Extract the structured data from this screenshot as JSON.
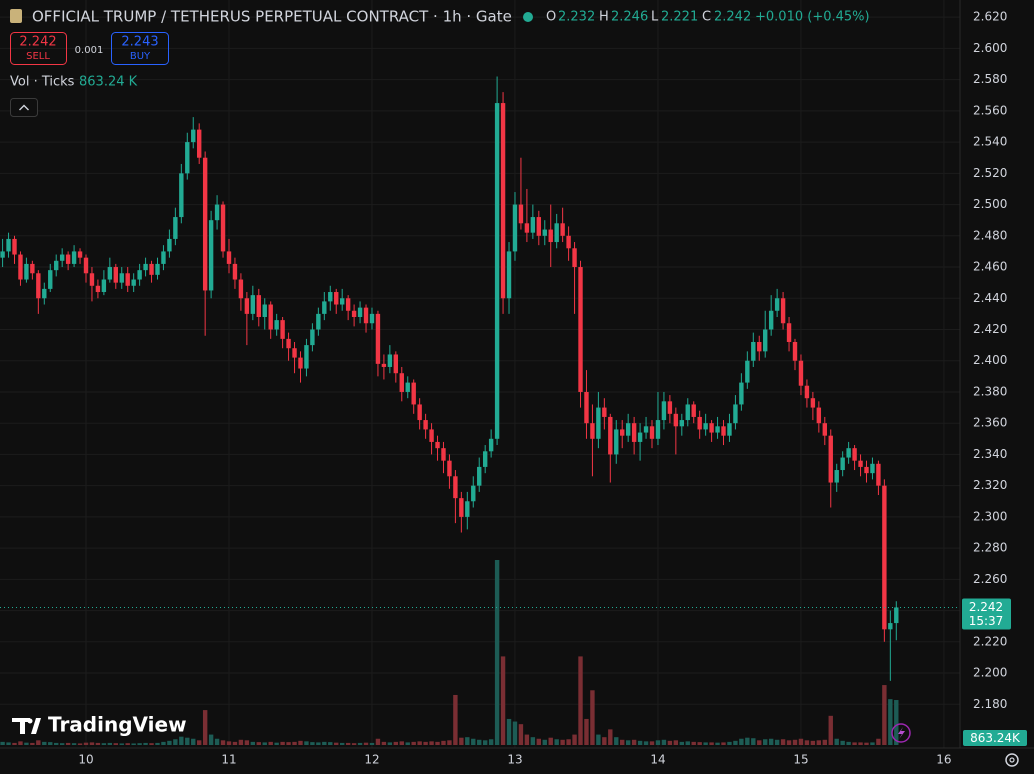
{
  "chart_data": {
    "type": "candlestick",
    "title": "OFFICIAL TRUMP / TETHERUS PERPETUAL CONTRACT · 1h · Gate",
    "ohlc_labels": [
      "O",
      "H",
      "L",
      "C"
    ],
    "change_label": "+0.010 (+0.45%)",
    "sell_label": "SELL",
    "buy_label": "BUY",
    "buy_price": 2.243,
    "spread": 0.001,
    "volume_title": "Vol · Ticks",
    "volume_label": "863.24 K",
    "volume_tag": "863.24K",
    "countdown": "15:37",
    "watermark": "TradingView",
    "up_color": "#22ab94",
    "down_color": "#f23645",
    "volume_up_color": "#1d5c55",
    "volume_down_color": "#7a2e33",
    "buy_color": "#2962ff",
    "grid": true,
    "ylim": [
      2.152,
      2.631
    ],
    "yticks": [
      {
        "value": 2.18,
        "label": "2.180"
      },
      {
        "value": 2.2,
        "label": "2.200"
      },
      {
        "value": 2.22,
        "label": "2.220"
      },
      {
        "value": 2.24,
        "label": "2.240"
      },
      {
        "value": 2.26,
        "label": "2.260"
      },
      {
        "value": 2.28,
        "label": "2.280"
      },
      {
        "value": 2.3,
        "label": "2.300"
      },
      {
        "value": 2.32,
        "label": "2.320"
      },
      {
        "value": 2.34,
        "label": "2.340"
      },
      {
        "value": 2.36,
        "label": "2.360"
      },
      {
        "value": 2.38,
        "label": "2.380"
      },
      {
        "value": 2.4,
        "label": "2.400"
      },
      {
        "value": 2.42,
        "label": "2.420"
      },
      {
        "value": 2.44,
        "label": "2.440"
      },
      {
        "value": 2.46,
        "label": "2.460"
      },
      {
        "value": 2.48,
        "label": "2.480"
      },
      {
        "value": 2.5,
        "label": "2.500"
      },
      {
        "value": 2.52,
        "label": "2.520"
      },
      {
        "value": 2.54,
        "label": "2.540"
      },
      {
        "value": 2.56,
        "label": "2.560"
      },
      {
        "value": 2.58,
        "label": "2.580"
      },
      {
        "value": 2.6,
        "label": "2.600"
      },
      {
        "value": 2.62,
        "label": "2.620"
      }
    ],
    "xticks": [
      {
        "value": 14,
        "label": "10"
      },
      {
        "value": 38,
        "label": "11"
      },
      {
        "value": 62,
        "label": "12"
      },
      {
        "value": 86,
        "label": "13"
      },
      {
        "value": 110,
        "label": "14"
      },
      {
        "value": 134,
        "label": "15"
      },
      {
        "value": 158,
        "label": "16"
      }
    ],
    "volume_max": 3550,
    "candles": [
      [
        2.466,
        2.478,
        2.46,
        2.47,
        60
      ],
      [
        2.47,
        2.482,
        2.466,
        2.478,
        50
      ],
      [
        2.478,
        2.48,
        2.462,
        2.468,
        40
      ],
      [
        2.468,
        2.47,
        2.448,
        2.452,
        70
      ],
      [
        2.452,
        2.466,
        2.45,
        2.462,
        45
      ],
      [
        2.462,
        2.464,
        2.452,
        2.456,
        40
      ],
      [
        2.456,
        2.458,
        2.43,
        2.44,
        90
      ],
      [
        2.44,
        2.45,
        2.436,
        2.446,
        60
      ],
      [
        2.446,
        2.462,
        2.444,
        2.458,
        55
      ],
      [
        2.458,
        2.468,
        2.454,
        2.464,
        40
      ],
      [
        2.464,
        2.472,
        2.46,
        2.468,
        35
      ],
      [
        2.468,
        2.47,
        2.458,
        2.462,
        40
      ],
      [
        2.462,
        2.474,
        2.46,
        2.47,
        35
      ],
      [
        2.47,
        2.472,
        2.462,
        2.466,
        30
      ],
      [
        2.466,
        2.468,
        2.45,
        2.456,
        45
      ],
      [
        2.456,
        2.46,
        2.438,
        2.448,
        50
      ],
      [
        2.448,
        2.452,
        2.44,
        2.444,
        40
      ],
      [
        2.444,
        2.458,
        2.442,
        2.452,
        35
      ],
      [
        2.452,
        2.466,
        2.45,
        2.46,
        40
      ],
      [
        2.46,
        2.462,
        2.446,
        2.45,
        35
      ],
      [
        2.45,
        2.46,
        2.446,
        2.456,
        30
      ],
      [
        2.456,
        2.46,
        2.444,
        2.448,
        35
      ],
      [
        2.448,
        2.456,
        2.444,
        2.452,
        30
      ],
      [
        2.452,
        2.462,
        2.448,
        2.458,
        35
      ],
      [
        2.458,
        2.466,
        2.454,
        2.462,
        40
      ],
      [
        2.462,
        2.464,
        2.45,
        2.455,
        35
      ],
      [
        2.455,
        2.466,
        2.452,
        2.462,
        40
      ],
      [
        2.462,
        2.474,
        2.458,
        2.47,
        60
      ],
      [
        2.47,
        2.484,
        2.466,
        2.478,
        80
      ],
      [
        2.478,
        2.498,
        2.474,
        2.492,
        110
      ],
      [
        2.492,
        2.526,
        2.488,
        2.52,
        160
      ],
      [
        2.52,
        2.546,
        2.516,
        2.54,
        140
      ],
      [
        2.54,
        2.556,
        2.536,
        2.548,
        120
      ],
      [
        2.548,
        2.552,
        2.526,
        2.53,
        90
      ],
      [
        2.53,
        2.534,
        2.416,
        2.445,
        670
      ],
      [
        2.445,
        2.496,
        2.44,
        2.49,
        200
      ],
      [
        2.49,
        2.506,
        2.484,
        2.5,
        120
      ],
      [
        2.5,
        2.502,
        2.466,
        2.47,
        90
      ],
      [
        2.47,
        2.478,
        2.456,
        2.462,
        70
      ],
      [
        2.462,
        2.466,
        2.446,
        2.452,
        60
      ],
      [
        2.452,
        2.456,
        2.432,
        2.44,
        100
      ],
      [
        2.44,
        2.444,
        2.41,
        2.43,
        90
      ],
      [
        2.43,
        2.448,
        2.426,
        2.442,
        60
      ],
      [
        2.442,
        2.446,
        2.422,
        2.428,
        55
      ],
      [
        2.428,
        2.44,
        2.42,
        2.436,
        50
      ],
      [
        2.436,
        2.438,
        2.414,
        2.42,
        60
      ],
      [
        2.42,
        2.43,
        2.416,
        2.426,
        45
      ],
      [
        2.426,
        2.428,
        2.408,
        2.414,
        60
      ],
      [
        2.414,
        2.418,
        2.4,
        2.408,
        55
      ],
      [
        2.408,
        2.412,
        2.392,
        2.402,
        60
      ],
      [
        2.402,
        2.406,
        2.386,
        2.395,
        80
      ],
      [
        2.395,
        2.414,
        2.39,
        2.41,
        70
      ],
      [
        2.41,
        2.424,
        2.406,
        2.42,
        55
      ],
      [
        2.42,
        2.434,
        2.416,
        2.43,
        50
      ],
      [
        2.43,
        2.444,
        2.426,
        2.438,
        60
      ],
      [
        2.438,
        2.448,
        2.432,
        2.444,
        55
      ],
      [
        2.444,
        2.446,
        2.43,
        2.436,
        45
      ],
      [
        2.436,
        2.446,
        2.432,
        2.44,
        40
      ],
      [
        2.44,
        2.442,
        2.426,
        2.432,
        40
      ],
      [
        2.432,
        2.436,
        2.422,
        2.428,
        35
      ],
      [
        2.428,
        2.438,
        2.424,
        2.434,
        40
      ],
      [
        2.434,
        2.436,
        2.418,
        2.424,
        45
      ],
      [
        2.424,
        2.434,
        2.42,
        2.43,
        40
      ],
      [
        2.43,
        2.432,
        2.39,
        2.398,
        120
      ],
      [
        2.398,
        2.404,
        2.388,
        2.396,
        60
      ],
      [
        2.396,
        2.41,
        2.392,
        2.404,
        50
      ],
      [
        2.404,
        2.406,
        2.386,
        2.392,
        60
      ],
      [
        2.392,
        2.396,
        2.374,
        2.38,
        70
      ],
      [
        2.38,
        2.39,
        2.376,
        2.386,
        50
      ],
      [
        2.386,
        2.388,
        2.366,
        2.372,
        60
      ],
      [
        2.372,
        2.376,
        2.356,
        2.362,
        70
      ],
      [
        2.362,
        2.366,
        2.35,
        2.356,
        60
      ],
      [
        2.356,
        2.36,
        2.34,
        2.348,
        70
      ],
      [
        2.348,
        2.352,
        2.336,
        2.344,
        60
      ],
      [
        2.344,
        2.348,
        2.328,
        2.336,
        80
      ],
      [
        2.336,
        2.34,
        2.318,
        2.326,
        90
      ],
      [
        2.326,
        2.33,
        2.296,
        2.312,
        960
      ],
      [
        2.312,
        2.316,
        2.29,
        2.3,
        140
      ],
      [
        2.3,
        2.316,
        2.292,
        2.31,
        150
      ],
      [
        2.31,
        2.326,
        2.306,
        2.32,
        120
      ],
      [
        2.32,
        2.338,
        2.316,
        2.332,
        100
      ],
      [
        2.332,
        2.346,
        2.328,
        2.342,
        90
      ],
      [
        2.342,
        2.356,
        2.338,
        2.35,
        110
      ],
      [
        2.35,
        2.582,
        2.346,
        2.565,
        3550
      ],
      [
        2.565,
        2.572,
        2.43,
        2.44,
        1700
      ],
      [
        2.44,
        2.476,
        2.43,
        2.47,
        500
      ],
      [
        2.47,
        2.508,
        2.464,
        2.5,
        450
      ],
      [
        2.5,
        2.53,
        2.484,
        2.488,
        400
      ],
      [
        2.488,
        2.51,
        2.476,
        2.482,
        200
      ],
      [
        2.482,
        2.5,
        2.478,
        2.492,
        150
      ],
      [
        2.492,
        2.496,
        2.474,
        2.48,
        120
      ],
      [
        2.48,
        2.49,
        2.474,
        2.484,
        100
      ],
      [
        2.484,
        2.5,
        2.46,
        2.476,
        140
      ],
      [
        2.476,
        2.494,
        2.472,
        2.488,
        110
      ],
      [
        2.488,
        2.498,
        2.476,
        2.48,
        100
      ],
      [
        2.48,
        2.486,
        2.464,
        2.472,
        110
      ],
      [
        2.472,
        2.476,
        2.43,
        2.46,
        200
      ],
      [
        2.46,
        2.464,
        2.37,
        2.38,
        1700
      ],
      [
        2.38,
        2.394,
        2.35,
        2.36,
        500
      ],
      [
        2.36,
        2.372,
        2.326,
        2.35,
        1050
      ],
      [
        2.35,
        2.38,
        2.344,
        2.37,
        200
      ],
      [
        2.37,
        2.376,
        2.356,
        2.364,
        150
      ],
      [
        2.364,
        2.366,
        2.322,
        2.34,
        300
      ],
      [
        2.34,
        2.362,
        2.334,
        2.356,
        150
      ],
      [
        2.356,
        2.362,
        2.344,
        2.352,
        100
      ],
      [
        2.352,
        2.366,
        2.348,
        2.36,
        90
      ],
      [
        2.36,
        2.364,
        2.34,
        2.348,
        100
      ],
      [
        2.348,
        2.36,
        2.336,
        2.354,
        80
      ],
      [
        2.354,
        2.364,
        2.35,
        2.358,
        70
      ],
      [
        2.358,
        2.362,
        2.344,
        2.35,
        70
      ],
      [
        2.35,
        2.38,
        2.346,
        2.362,
        90
      ],
      [
        2.362,
        2.38,
        2.356,
        2.374,
        100
      ],
      [
        2.374,
        2.378,
        2.36,
        2.366,
        80
      ],
      [
        2.366,
        2.37,
        2.34,
        2.358,
        90
      ],
      [
        2.358,
        2.366,
        2.352,
        2.362,
        60
      ],
      [
        2.362,
        2.376,
        2.358,
        2.372,
        70
      ],
      [
        2.372,
        2.374,
        2.36,
        2.364,
        60
      ],
      [
        2.364,
        2.368,
        2.35,
        2.356,
        55
      ],
      [
        2.356,
        2.366,
        2.352,
        2.36,
        50
      ],
      [
        2.36,
        2.362,
        2.348,
        2.354,
        50
      ],
      [
        2.354,
        2.364,
        2.35,
        2.358,
        45
      ],
      [
        2.358,
        2.362,
        2.346,
        2.352,
        50
      ],
      [
        2.352,
        2.366,
        2.348,
        2.36,
        60
      ],
      [
        2.36,
        2.378,
        2.356,
        2.372,
        80
      ],
      [
        2.372,
        2.392,
        2.368,
        2.386,
        120
      ],
      [
        2.386,
        2.406,
        2.382,
        2.4,
        140
      ],
      [
        2.4,
        2.418,
        2.396,
        2.412,
        130
      ],
      [
        2.412,
        2.416,
        2.4,
        2.406,
        90
      ],
      [
        2.406,
        2.432,
        2.402,
        2.42,
        110
      ],
      [
        2.42,
        2.442,
        2.416,
        2.432,
        120
      ],
      [
        2.432,
        2.446,
        2.428,
        2.44,
        100
      ],
      [
        2.44,
        2.444,
        2.42,
        2.424,
        110
      ],
      [
        2.424,
        2.428,
        2.406,
        2.412,
        90
      ],
      [
        2.412,
        2.414,
        2.394,
        2.4,
        100
      ],
      [
        2.4,
        2.404,
        2.378,
        2.384,
        120
      ],
      [
        2.384,
        2.388,
        2.37,
        2.376,
        90
      ],
      [
        2.376,
        2.38,
        2.362,
        2.37,
        80
      ],
      [
        2.37,
        2.374,
        2.354,
        2.36,
        90
      ],
      [
        2.36,
        2.364,
        2.346,
        2.352,
        100
      ],
      [
        2.352,
        2.356,
        2.306,
        2.322,
        560
      ],
      [
        2.322,
        2.334,
        2.316,
        2.33,
        120
      ],
      [
        2.33,
        2.342,
        2.326,
        2.338,
        80
      ],
      [
        2.338,
        2.348,
        2.334,
        2.344,
        60
      ],
      [
        2.344,
        2.346,
        2.33,
        2.336,
        50
      ],
      [
        2.336,
        2.34,
        2.326,
        2.332,
        50
      ],
      [
        2.332,
        2.336,
        2.322,
        2.328,
        45
      ],
      [
        2.328,
        2.338,
        2.324,
        2.334,
        50
      ],
      [
        2.334,
        2.336,
        2.314,
        2.32,
        120
      ],
      [
        2.32,
        2.324,
        2.22,
        2.228,
        1150
      ],
      [
        2.228,
        2.24,
        2.195,
        2.232,
        880
      ],
      [
        2.232,
        2.246,
        2.221,
        2.242,
        863.24
      ]
    ]
  }
}
